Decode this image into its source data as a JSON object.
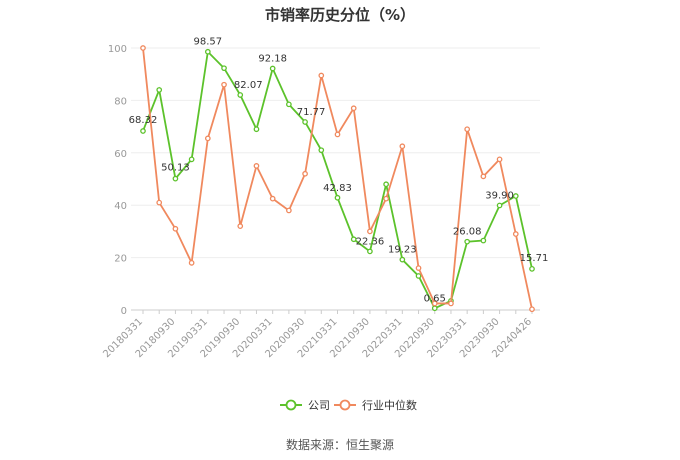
{
  "title": "市销率历史分位（%）",
  "source": "数据来源：恒生聚源",
  "chart_data": {
    "type": "line",
    "title": "市销率历史分位（%）",
    "ylim": [
      0,
      100
    ],
    "yticks": [
      0,
      20,
      40,
      60,
      80,
      100
    ],
    "grid": true,
    "legend_position": "bottom-center",
    "x": [
      "20180331",
      "20180630",
      "20180930",
      "20181231",
      "20190331",
      "20190630",
      "20190930",
      "20191231",
      "20200331",
      "20200630",
      "20200930",
      "20201231",
      "20210331",
      "20210630",
      "20210930",
      "20211231",
      "20220331",
      "20220630",
      "20220930",
      "20221231",
      "20230331",
      "20230630",
      "20230930",
      "20231231",
      "20240426"
    ],
    "xtick_labels": [
      "20180331",
      "20180930",
      "20190331",
      "20190930",
      "20200331",
      "20200930",
      "20210331",
      "20210930",
      "20220331",
      "20220930",
      "20230331",
      "20230930",
      "20240426"
    ],
    "series": [
      {
        "name": "公司",
        "color": "#5cc22b",
        "values": [
          68.32,
          84,
          50.13,
          57.5,
          98.57,
          92.3,
          82.07,
          69,
          92.18,
          78.5,
          71.77,
          61,
          42.83,
          27,
          22.36,
          48,
          19.23,
          13,
          0.65,
          3.5,
          26.08,
          26.5,
          39.9,
          43.5,
          15.71
        ],
        "labeled": {
          "0": "68.32",
          "2": "50.13",
          "4": "98.57",
          "6": "82.07",
          "8": "92.18",
          "10": "71.77",
          "12": "42.83",
          "14": "22.36",
          "16": "19.23",
          "18": "0.65",
          "20": "26.08",
          "22": "39.90",
          "24": "15.71"
        }
      },
      {
        "name": "行业中位数",
        "color": "#f0895e",
        "values": [
          100,
          41,
          31,
          18,
          65.5,
          86,
          32,
          55,
          42.5,
          38,
          52,
          89.5,
          67,
          77,
          30,
          42.5,
          62.5,
          16,
          2.5,
          2.5,
          69,
          51,
          57.5,
          29,
          0.3
        ]
      }
    ]
  }
}
